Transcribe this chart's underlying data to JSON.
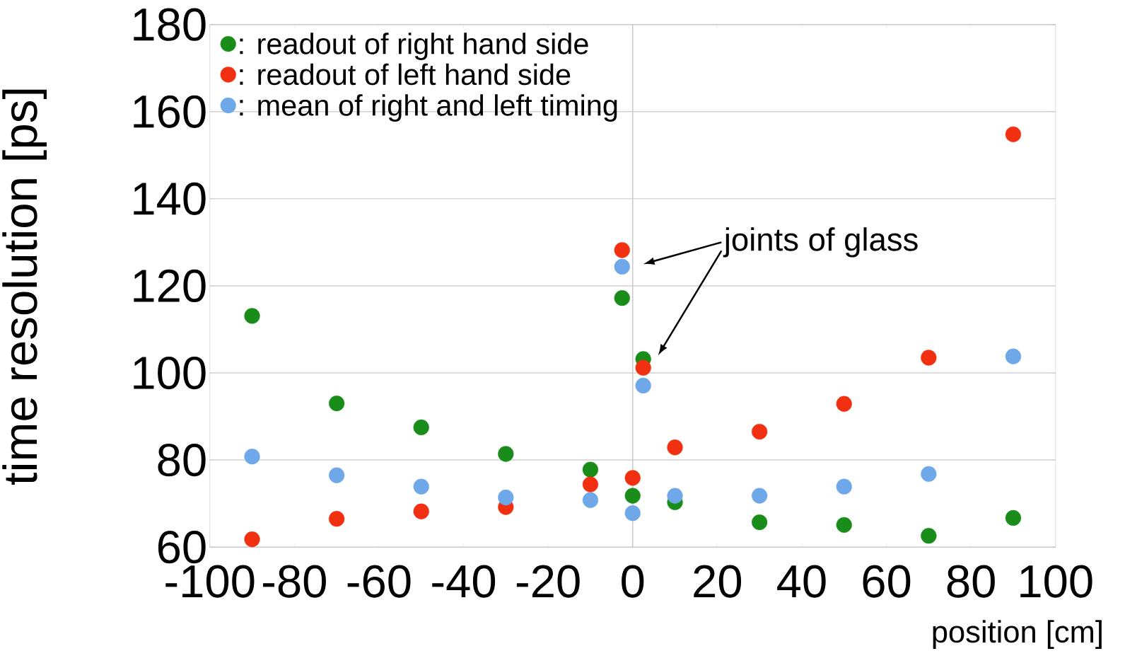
{
  "chart_data": {
    "type": "scatter",
    "xlabel": "position [cm]",
    "ylabel": "time resolution [ps]",
    "x": [
      -90,
      -70,
      -50,
      -30,
      -10,
      -2.5,
      0,
      2.5,
      10,
      30,
      50,
      70,
      90
    ],
    "series": [
      {
        "name": ": readout of right hand side",
        "color": "#1a8c1a",
        "values": [
          113.1,
          93.0,
          87.5,
          81.4,
          77.8,
          117.2,
          71.8,
          103.2,
          70.3,
          65.7,
          65.1,
          62.6,
          66.7
        ]
      },
      {
        "name": ": readout of left hand side",
        "color": "#f03010",
        "values": [
          61.8,
          66.5,
          68.2,
          69.2,
          74.4,
          128.2,
          75.9,
          101.2,
          82.9,
          86.5,
          92.9,
          103.5,
          154.8
        ]
      },
      {
        "name": ": mean of right and left timing",
        "color": "#6fa8e8",
        "values": [
          80.8,
          76.5,
          73.9,
          71.4,
          70.8,
          124.4,
          67.8,
          97.1,
          71.8,
          71.8,
          73.9,
          76.8,
          103.8
        ]
      }
    ],
    "xlim": [
      -100,
      100
    ],
    "ylim": [
      60,
      180
    ],
    "xticks": [
      -100,
      -80,
      -60,
      -40,
      -20,
      0,
      20,
      40,
      60,
      80,
      100
    ],
    "yticks": [
      60,
      80,
      100,
      120,
      140,
      160,
      180
    ],
    "grid": "y",
    "legend": "top left",
    "marker": "circle",
    "ref_lines": [
      {
        "axis": "x",
        "value": 0,
        "color": "#c8c8c8"
      }
    ],
    "annotations": [
      "joints of glass"
    ]
  }
}
